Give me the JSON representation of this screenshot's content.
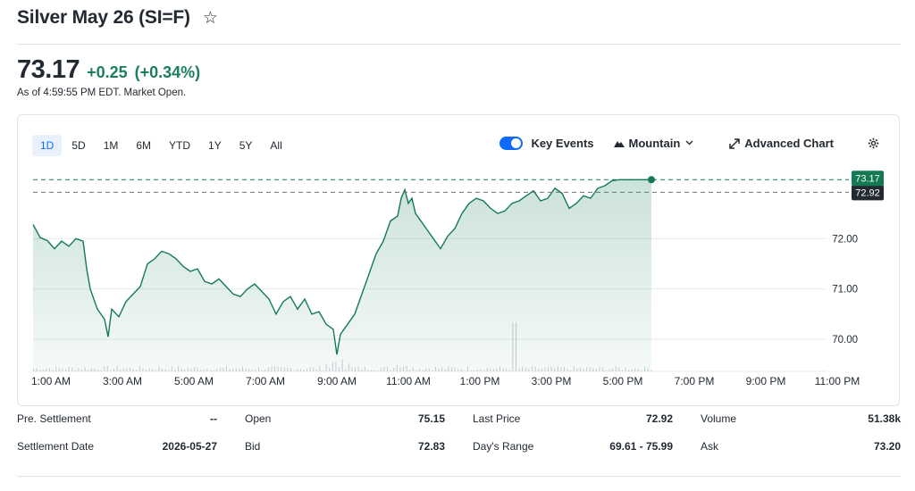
{
  "header": {
    "title": "Silver May 26 (SI=F)",
    "star_icon": "star-outline-icon"
  },
  "quote": {
    "price": "73.17",
    "change": "+0.25",
    "change_pct": "(+0.34%)",
    "as_of": "As of 4:59:55 PM EDT. Market Open.",
    "positive_color": "#1a7f5a"
  },
  "chart_controls": {
    "ranges": [
      "1D",
      "5D",
      "1M",
      "6M",
      "YTD",
      "1Y",
      "5Y",
      "All"
    ],
    "active_range": "1D",
    "key_events_label": "Key Events",
    "key_events_on": true,
    "chart_type_label": "Mountain",
    "advanced_label": "Advanced Chart",
    "settings_icon": "gear-icon"
  },
  "chart_data": {
    "type": "area",
    "x_tick_labels": [
      "1:00 AM",
      "3:00 AM",
      "5:00 AM",
      "7:00 AM",
      "9:00 AM",
      "11:00 AM",
      "1:00 PM",
      "3:00 PM",
      "5:00 PM",
      "7:00 PM",
      "9:00 PM",
      "11:00 PM"
    ],
    "x_range_hours": [
      0.5,
      23.5
    ],
    "y_tick_labels": [
      "72.00",
      "71.00",
      "70.00"
    ],
    "y_ticks": [
      72,
      71,
      70
    ],
    "ylim": [
      69.4,
      73.6
    ],
    "last_price_label": "73.17",
    "prev_close_label": "72.92",
    "last_price": 73.17,
    "prev_close": 72.92,
    "line_color": "#137a54",
    "x_hours": [
      0.5,
      0.7,
      0.9,
      1.1,
      1.3,
      1.5,
      1.7,
      1.9,
      2.0,
      2.1,
      2.3,
      2.5,
      2.6,
      2.7,
      2.9,
      3.1,
      3.3,
      3.5,
      3.7,
      3.9,
      4.1,
      4.3,
      4.5,
      4.7,
      4.9,
      5.1,
      5.3,
      5.5,
      5.7,
      5.9,
      6.1,
      6.3,
      6.5,
      6.7,
      6.9,
      7.1,
      7.3,
      7.5,
      7.7,
      7.9,
      8.1,
      8.3,
      8.5,
      8.7,
      8.9,
      9.0,
      9.1,
      9.3,
      9.5,
      9.7,
      9.9,
      10.1,
      10.3,
      10.5,
      10.7,
      10.8,
      10.9,
      11.0,
      11.1,
      11.2,
      11.3,
      11.5,
      11.7,
      11.9,
      12.1,
      12.3,
      12.5,
      12.7,
      12.9,
      13.1,
      13.3,
      13.5,
      13.7,
      13.9,
      14.1,
      14.3,
      14.5,
      14.7,
      14.9,
      15.1,
      15.3,
      15.5,
      15.7,
      15.9,
      16.1,
      16.3,
      16.5,
      16.7,
      16.9,
      17.0,
      17.2,
      17.4,
      17.6,
      17.8
    ],
    "y_values": [
      72.28,
      72.02,
      71.96,
      71.8,
      71.95,
      71.85,
      72.0,
      71.95,
      71.4,
      71.0,
      70.6,
      70.4,
      70.05,
      70.6,
      70.45,
      70.75,
      70.9,
      71.05,
      71.5,
      71.6,
      71.75,
      71.7,
      71.6,
      71.45,
      71.35,
      71.4,
      71.15,
      71.1,
      71.2,
      71.05,
      70.9,
      70.85,
      71.0,
      71.1,
      70.95,
      70.8,
      70.5,
      70.75,
      70.85,
      70.6,
      70.8,
      70.5,
      70.55,
      70.3,
      70.2,
      69.7,
      70.1,
      70.3,
      70.5,
      70.9,
      71.3,
      71.7,
      71.95,
      72.35,
      72.45,
      72.8,
      72.97,
      72.7,
      72.8,
      72.5,
      72.4,
      72.2,
      72.0,
      71.8,
      72.05,
      72.2,
      72.5,
      72.7,
      72.8,
      72.75,
      72.6,
      72.5,
      72.55,
      72.7,
      72.75,
      72.85,
      72.95,
      72.75,
      72.8,
      73.0,
      72.9,
      72.6,
      72.7,
      72.85,
      72.8,
      73.0,
      73.05,
      73.15,
      73.17,
      73.17,
      73.17,
      73.17,
      73.17,
      73.17
    ],
    "volume_note": "intraday volume bars along the bottom"
  },
  "stats": [
    [
      {
        "label": "Pre. Settlement",
        "value": "--"
      },
      {
        "label": "Open",
        "value": "75.15"
      },
      {
        "label": "Last Price",
        "value": "72.92"
      },
      {
        "label": "Volume",
        "value": "51.38k"
      }
    ],
    [
      {
        "label": "Settlement Date",
        "value": "2026-05-27"
      },
      {
        "label": "Bid",
        "value": "72.83"
      },
      {
        "label": "Day's Range",
        "value": "69.61 - 75.99"
      },
      {
        "label": "Ask",
        "value": "73.20"
      }
    ]
  ]
}
